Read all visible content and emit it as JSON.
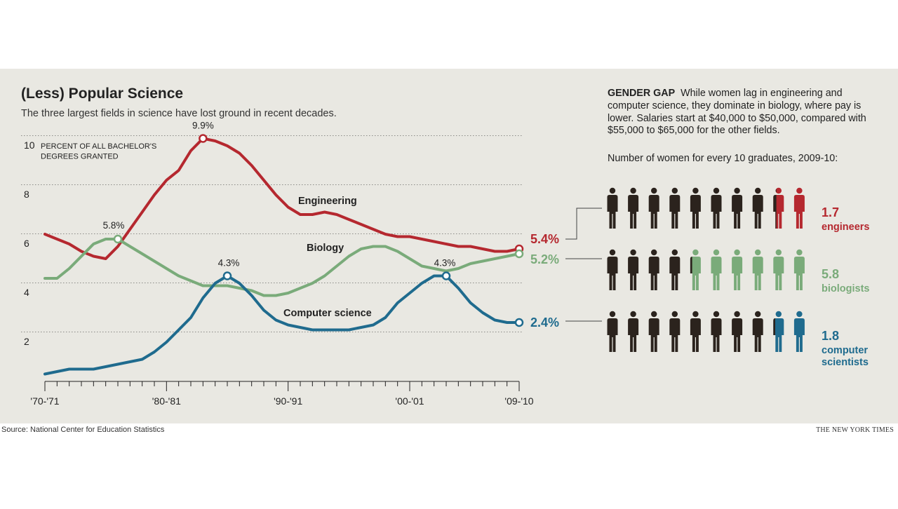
{
  "title": "(Less) Popular Science",
  "subtitle": "The three largest fields in science have lost ground in recent decades.",
  "source": "Source: National Center for Education Statistics",
  "credit": "THE NEW YORK TIMES",
  "gender_gap": {
    "heading": "GENDER GAP",
    "text": "While women lag in engineering and computer science, they dominate in biology, where pay is lower. Salaries start at $40,000 to $50,000, compared with $55,000 to $65,000 for the other fields.",
    "caption": "Number of women for every 10 graduates, 2009-10:",
    "rows": [
      {
        "value": "1.7",
        "women": 1.7,
        "label_lines": [
          "engineers"
        ],
        "color": "#b5282f"
      },
      {
        "value": "5.8",
        "women": 5.8,
        "label_lines": [
          "biologists"
        ],
        "color": "#7aab7a"
      },
      {
        "value": "1.8",
        "women": 1.8,
        "label_lines": [
          "computer",
          "scientists"
        ],
        "color": "#1f6b8e"
      }
    ],
    "man_color": "#2b231d"
  },
  "chart_data": {
    "type": "line",
    "ylabel_lines": [
      "PERCENT OF ALL BACHELOR'S",
      "DEGREES GRANTED"
    ],
    "ylim": [
      0,
      10
    ],
    "yticks": [
      2,
      4,
      6,
      8,
      10
    ],
    "x_range": [
      1970,
      2009
    ],
    "xtick_labels": [
      {
        "x": 1970,
        "label": "'70-'71"
      },
      {
        "x": 1980,
        "label": "'80-'81"
      },
      {
        "x": 1990,
        "label": "'90-'91"
      },
      {
        "x": 2000,
        "label": "'00-'01"
      },
      {
        "x": 2009,
        "label": "'09-'10"
      }
    ],
    "grid": "horizontal dotted",
    "series": [
      {
        "name": "Engineering",
        "color": "#b5282f",
        "x": [
          1970,
          1971,
          1972,
          1973,
          1974,
          1975,
          1976,
          1977,
          1978,
          1979,
          1980,
          1981,
          1982,
          1983,
          1984,
          1985,
          1986,
          1987,
          1988,
          1989,
          1990,
          1991,
          1992,
          1993,
          1994,
          1995,
          1996,
          1997,
          1998,
          1999,
          2000,
          2001,
          2002,
          2003,
          2004,
          2005,
          2006,
          2007,
          2008,
          2009
        ],
        "values": [
          6.0,
          5.8,
          5.6,
          5.3,
          5.1,
          5.0,
          5.5,
          6.2,
          6.9,
          7.6,
          8.2,
          8.6,
          9.4,
          9.9,
          9.8,
          9.6,
          9.3,
          8.8,
          8.2,
          7.6,
          7.1,
          6.8,
          6.8,
          6.9,
          6.8,
          6.6,
          6.4,
          6.2,
          6.0,
          5.9,
          5.9,
          5.8,
          5.7,
          5.6,
          5.5,
          5.5,
          5.4,
          5.3,
          5.3,
          5.4
        ],
        "annotations": [
          {
            "x": 1983,
            "y": 9.9,
            "label": "9.9%"
          }
        ],
        "end_label": "5.4%"
      },
      {
        "name": "Biology",
        "color": "#7aab7a",
        "x": [
          1970,
          1971,
          1972,
          1973,
          1974,
          1975,
          1976,
          1977,
          1978,
          1979,
          1980,
          1981,
          1982,
          1983,
          1984,
          1985,
          1986,
          1987,
          1988,
          1989,
          1990,
          1991,
          1992,
          1993,
          1994,
          1995,
          1996,
          1997,
          1998,
          1999,
          2000,
          2001,
          2002,
          2003,
          2004,
          2005,
          2006,
          2007,
          2008,
          2009
        ],
        "values": [
          4.2,
          4.2,
          4.6,
          5.1,
          5.6,
          5.8,
          5.8,
          5.5,
          5.2,
          4.9,
          4.6,
          4.3,
          4.1,
          3.9,
          3.9,
          3.9,
          3.8,
          3.7,
          3.5,
          3.5,
          3.6,
          3.8,
          4.0,
          4.3,
          4.7,
          5.1,
          5.4,
          5.5,
          5.5,
          5.3,
          5.0,
          4.7,
          4.6,
          4.5,
          4.6,
          4.8,
          4.9,
          5.0,
          5.1,
          5.2
        ],
        "annotations": [
          {
            "x": 1976,
            "y": 5.8,
            "label": "5.8%"
          }
        ],
        "end_label": "5.2%"
      },
      {
        "name": "Computer science",
        "color": "#1f6b8e",
        "x": [
          1970,
          1971,
          1972,
          1973,
          1974,
          1975,
          1976,
          1977,
          1978,
          1979,
          1980,
          1981,
          1982,
          1983,
          1984,
          1985,
          1986,
          1987,
          1988,
          1989,
          1990,
          1991,
          1992,
          1993,
          1994,
          1995,
          1996,
          1997,
          1998,
          1999,
          2000,
          2001,
          2002,
          2003,
          2004,
          2005,
          2006,
          2007,
          2008,
          2009
        ],
        "values": [
          0.3,
          0.4,
          0.5,
          0.5,
          0.5,
          0.6,
          0.7,
          0.8,
          0.9,
          1.2,
          1.6,
          2.1,
          2.6,
          3.4,
          4.0,
          4.3,
          4.0,
          3.5,
          2.9,
          2.5,
          2.3,
          2.2,
          2.1,
          2.1,
          2.1,
          2.1,
          2.2,
          2.3,
          2.6,
          3.2,
          3.6,
          4.0,
          4.3,
          4.3,
          3.8,
          3.2,
          2.8,
          2.5,
          2.4,
          2.4
        ],
        "annotations": [
          {
            "x": 1985,
            "y": 4.3,
            "label": "4.3%"
          },
          {
            "x": 2003,
            "y": 4.3,
            "label": "4.3%"
          }
        ],
        "end_label": "2.4%"
      }
    ]
  }
}
